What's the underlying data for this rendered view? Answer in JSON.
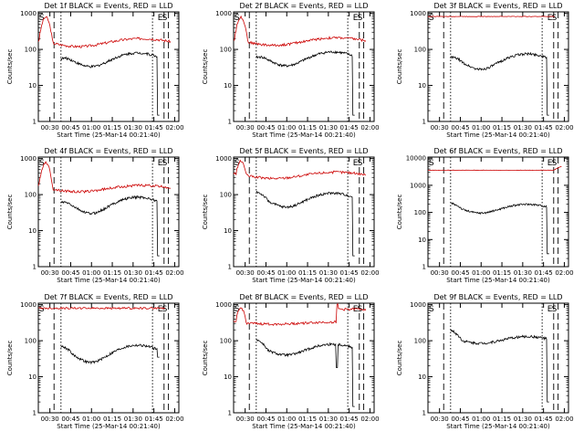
{
  "chart_data": [
    {
      "type": "line",
      "title": "Det 1f BLACK = Events, RED = LLD",
      "xlabel": "Start Time (25-Mar-14 00:21:40)",
      "ylabel": "Counts/sec",
      "ylog": true,
      "yticks": [
        "1",
        "10",
        "100",
        "1000"
      ],
      "xticks": [
        "00:30",
        "00:45",
        "01:00",
        "01:15",
        "01:30",
        "01:45",
        "02:00"
      ],
      "xlim": [
        "00:21:40",
        "02:03:00"
      ],
      "ylim": [
        1,
        1100
      ],
      "markers": [
        {
          "label": "S",
          "time": "00:21:40"
        },
        {
          "label": "E",
          "time": "01:52:20"
        },
        {
          "label": "S",
          "time": "01:55:30"
        }
      ],
      "lines": [
        {
          "time": "00:33:00",
          "style": "dashed"
        },
        {
          "time": "00:38:00",
          "style": "dotted"
        },
        {
          "time": "01:44:00",
          "style": "dotted"
        },
        {
          "time": "01:52:20",
          "style": "dashed"
        },
        {
          "time": "01:55:30",
          "style": "dashed"
        }
      ],
      "series": [
        {
          "color": "#cc0000",
          "shape": "hump",
          "start": "00:21:40",
          "end": "01:57:00",
          "peak_time": "00:27:00",
          "peak": 780,
          "base": 170,
          "mid_min": 120,
          "mid_max": 200
        },
        {
          "color": "#000000",
          "shape": "hump",
          "start": "00:38:00",
          "end": "01:49:00",
          "base": 55,
          "mid_min": 33,
          "mid_max": 80,
          "end_drop": 1.5
        }
      ]
    },
    {
      "type": "line",
      "title": "Det 2f BLACK = Events, RED = LLD",
      "xlabel": "Start Time (25-Mar-14 00:21:40)",
      "ylabel": "Counts/sec",
      "ylog": true,
      "yticks": [
        "1",
        "10",
        "100",
        "1000"
      ],
      "xticks": [
        "00:30",
        "00:45",
        "01:00",
        "01:15",
        "01:30",
        "01:45",
        "02:00"
      ],
      "xlim": [
        "00:21:40",
        "02:03:00"
      ],
      "ylim": [
        1,
        1100
      ],
      "markers": [
        {
          "label": "S",
          "time": "00:21:40"
        },
        {
          "label": "E",
          "time": "01:52:20"
        },
        {
          "label": "S",
          "time": "01:55:30"
        }
      ],
      "lines": [
        {
          "time": "00:33:00",
          "style": "dashed"
        },
        {
          "time": "00:38:00",
          "style": "dotted"
        },
        {
          "time": "01:44:00",
          "style": "dotted"
        },
        {
          "time": "01:52:20",
          "style": "dashed"
        },
        {
          "time": "01:55:30",
          "style": "dashed"
        }
      ],
      "series": [
        {
          "color": "#cc0000",
          "shape": "hump",
          "start": "00:21:40",
          "end": "01:57:00",
          "peak_time": "00:27:00",
          "peak": 780,
          "base": 180,
          "mid_min": 130,
          "mid_max": 210
        },
        {
          "color": "#000000",
          "shape": "hump",
          "start": "00:38:00",
          "end": "01:49:00",
          "base": 60,
          "mid_min": 35,
          "mid_max": 85,
          "end_drop": 1.5
        }
      ]
    },
    {
      "type": "line",
      "title": "Det 3f BLACK = Events, RED = LLD",
      "xlabel": "Start Time (25-Mar-14 00:21:40)",
      "ylabel": "Counts/sec",
      "ylog": true,
      "yticks": [
        "1",
        "10",
        "100",
        "1000"
      ],
      "xticks": [
        "00:30",
        "00:45",
        "01:00",
        "01:15",
        "01:30",
        "01:45",
        "02:00"
      ],
      "xlim": [
        "00:21:40",
        "02:03:00"
      ],
      "ylim": [
        1,
        1100
      ],
      "markers": [
        {
          "label": "S",
          "time": "00:21:40"
        },
        {
          "label": "E",
          "time": "01:52:20"
        },
        {
          "label": "S",
          "time": "01:55:30"
        }
      ],
      "lines": [
        {
          "time": "00:33:00",
          "style": "dashed"
        },
        {
          "time": "00:38:00",
          "style": "dotted"
        },
        {
          "time": "01:44:00",
          "style": "dotted"
        },
        {
          "time": "01:52:20",
          "style": "dashed"
        },
        {
          "time": "01:55:30",
          "style": "dashed"
        }
      ],
      "series": [
        {
          "color": "#cc0000",
          "shape": "flat",
          "start": "00:21:40",
          "end": "01:53:00",
          "level": 820
        },
        {
          "color": "#000000",
          "shape": "hump",
          "start": "00:38:00",
          "end": "01:49:00",
          "base": 60,
          "mid_min": 28,
          "mid_max": 75,
          "end_drop": 1.5
        }
      ]
    },
    {
      "type": "line",
      "title": "Det 4f BLACK = Events, RED = LLD",
      "xlabel": "Start Time (25-Mar-14 00:21:40)",
      "ylabel": "Counts/sec",
      "ylog": true,
      "yticks": [
        "1",
        "10",
        "100",
        "1000"
      ],
      "xticks": [
        "00:30",
        "00:45",
        "01:00",
        "01:15",
        "01:30",
        "01:45",
        "02:00"
      ],
      "xlim": [
        "00:21:40",
        "02:03:00"
      ],
      "ylim": [
        1,
        1100
      ],
      "markers": [
        {
          "label": "S",
          "time": "00:21:40"
        },
        {
          "label": "E",
          "time": "01:52:20"
        },
        {
          "label": "S",
          "time": "01:55:30"
        }
      ],
      "lines": [
        {
          "time": "00:33:00",
          "style": "dashed"
        },
        {
          "time": "00:38:00",
          "style": "dotted"
        },
        {
          "time": "01:44:00",
          "style": "dotted"
        },
        {
          "time": "01:52:20",
          "style": "dashed"
        },
        {
          "time": "01:55:30",
          "style": "dashed"
        }
      ],
      "series": [
        {
          "color": "#cc0000",
          "shape": "hump",
          "start": "00:21:40",
          "end": "01:57:00",
          "peak_time": "00:27:00",
          "peak": 780,
          "base": 190,
          "mid_min": 120,
          "mid_max": 180
        },
        {
          "color": "#000000",
          "shape": "hump",
          "start": "00:38:00",
          "end": "01:49:00",
          "base": 60,
          "mid_min": 30,
          "mid_max": 85,
          "end_drop": 2
        }
      ]
    },
    {
      "type": "line",
      "title": "Det 5f BLACK = Events, RED = LLD",
      "xlabel": "Start Time (25-Mar-14 00:21:40)",
      "ylabel": "Counts/sec",
      "ylog": true,
      "yticks": [
        "1",
        "10",
        "100",
        "1000"
      ],
      "xticks": [
        "00:30",
        "00:45",
        "01:00",
        "01:15",
        "01:30",
        "01:45",
        "02:00"
      ],
      "xlim": [
        "00:21:40",
        "02:03:00"
      ],
      "ylim": [
        1,
        1100
      ],
      "markers": [
        {
          "label": "S",
          "time": "00:21:40"
        },
        {
          "label": "E",
          "time": "01:52:20"
        },
        {
          "label": "S",
          "time": "01:55:30"
        }
      ],
      "lines": [
        {
          "time": "00:33:00",
          "style": "dashed"
        },
        {
          "time": "00:38:00",
          "style": "dotted"
        },
        {
          "time": "01:44:00",
          "style": "dotted"
        },
        {
          "time": "01:52:20",
          "style": "dashed"
        },
        {
          "time": "01:55:30",
          "style": "dashed"
        }
      ],
      "series": [
        {
          "color": "#cc0000",
          "shape": "hump",
          "start": "00:21:40",
          "end": "01:57:00",
          "peak_time": "00:27:00",
          "peak": 850,
          "base": 380,
          "mid_min": 280,
          "mid_max": 420
        },
        {
          "color": "#000000",
          "shape": "hump",
          "start": "00:38:00",
          "end": "01:49:00",
          "base": 120,
          "mid_min": 45,
          "mid_max": 110,
          "end_drop": 2
        }
      ]
    },
    {
      "type": "line",
      "title": "Det 6f BLACK = Events, RED = LLD",
      "xlabel": "Start Time (25-Mar-14 00:21:40)",
      "ylabel": "Counts/sec",
      "ylog": true,
      "yticks": [
        "1",
        "10",
        "100",
        "1000",
        "10000"
      ],
      "xticks": [
        "00:30",
        "00:45",
        "01:00",
        "01:15",
        "01:30",
        "01:45",
        "02:00"
      ],
      "xlim": [
        "00:21:40",
        "02:03:00"
      ],
      "ylim": [
        1,
        11000
      ],
      "markers": [
        {
          "label": "S",
          "time": "00:21:40"
        },
        {
          "label": "E",
          "time": "01:52:20"
        },
        {
          "label": "S",
          "time": "01:55:30"
        }
      ],
      "lines": [
        {
          "time": "00:33:00",
          "style": "dashed"
        },
        {
          "time": "00:38:00",
          "style": "dotted"
        },
        {
          "time": "01:44:00",
          "style": "dotted"
        },
        {
          "time": "01:52:20",
          "style": "dashed"
        },
        {
          "time": "01:55:30",
          "style": "dashed"
        }
      ],
      "series": [
        {
          "color": "#cc0000",
          "shape": "flat",
          "start": "00:21:40",
          "end": "01:58:00",
          "level": 3600,
          "end_rise": 5000
        },
        {
          "color": "#000000",
          "shape": "hump",
          "start": "00:38:00",
          "end": "01:49:00",
          "base": 220,
          "mid_min": 95,
          "mid_max": 200,
          "end_drop": 3
        }
      ]
    },
    {
      "type": "line",
      "title": "Det 7f BLACK = Events, RED = LLD",
      "xlabel": "Start Time (25-Mar-14 00:21:40)",
      "ylabel": "Counts/sec",
      "ylog": true,
      "yticks": [
        "1",
        "10",
        "100",
        "1000"
      ],
      "xticks": [
        "00:30",
        "00:45",
        "01:00",
        "01:15",
        "01:30",
        "01:45",
        "02:00"
      ],
      "xlim": [
        "00:21:40",
        "02:03:00"
      ],
      "ylim": [
        1,
        1100
      ],
      "markers": [
        {
          "label": "S",
          "time": "00:21:40"
        },
        {
          "label": "E",
          "time": "01:52:20"
        },
        {
          "label": "S",
          "time": "01:55:30"
        }
      ],
      "lines": [
        {
          "time": "00:33:00",
          "style": "dashed"
        },
        {
          "time": "00:38:00",
          "style": "dotted"
        },
        {
          "time": "01:44:00",
          "style": "dotted"
        },
        {
          "time": "01:52:20",
          "style": "dashed"
        },
        {
          "time": "01:55:30",
          "style": "dashed"
        }
      ],
      "series": [
        {
          "color": "#cc0000",
          "shape": "flat",
          "start": "00:21:40",
          "end": "01:53:00",
          "level": 800,
          "noise": 0.06
        },
        {
          "color": "#000000",
          "shape": "hump",
          "start": "00:38:00",
          "end": "01:49:00",
          "base": 70,
          "mid_min": 25,
          "mid_max": 75,
          "end_drop": 35
        }
      ]
    },
    {
      "type": "line",
      "title": "Det 8f BLACK = Events, RED = LLD",
      "xlabel": "Start Time (25-Mar-14 00:21:40)",
      "ylabel": "Counts/sec",
      "ylog": true,
      "yticks": [
        "1",
        "10",
        "100",
        "1000"
      ],
      "xticks": [
        "00:30",
        "00:45",
        "01:00",
        "01:15",
        "01:30",
        "01:45",
        "02:00"
      ],
      "xlim": [
        "00:21:40",
        "02:03:00"
      ],
      "ylim": [
        1,
        1100
      ],
      "markers": [
        {
          "label": "S",
          "time": "00:21:40"
        },
        {
          "label": "E",
          "time": "01:52:20"
        },
        {
          "label": "S",
          "time": "01:55:30"
        }
      ],
      "lines": [
        {
          "time": "00:33:00",
          "style": "dashed"
        },
        {
          "time": "00:38:00",
          "style": "dotted"
        },
        {
          "time": "01:44:00",
          "style": "dotted"
        },
        {
          "time": "01:52:20",
          "style": "dashed"
        },
        {
          "time": "01:55:30",
          "style": "dashed"
        }
      ],
      "series": [
        {
          "color": "#cc0000",
          "shape": "hump",
          "start": "00:21:40",
          "end": "01:57:00",
          "peak_time": "00:27:00",
          "peak": 800,
          "base": 330,
          "mid_min": 290,
          "mid_max": 330,
          "step_time": "01:36:00",
          "step_level": 1000
        },
        {
          "color": "#000000",
          "shape": "hump",
          "start": "00:38:00",
          "end": "01:49:00",
          "base": 110,
          "mid_min": 40,
          "mid_max": 80,
          "end_drop": 1.5,
          "gap_time": "01:36:00"
        }
      ]
    },
    {
      "type": "line",
      "title": "Det 9f BLACK = Events, RED = LLD",
      "xlabel": "Start Time (25-Mar-14 00:21:40)",
      "ylabel": "Counts/sec",
      "ylog": true,
      "yticks": [
        "1",
        "10",
        "100",
        "1000"
      ],
      "xticks": [
        "00:30",
        "00:45",
        "01:00",
        "01:15",
        "01:30",
        "01:45",
        "02:00"
      ],
      "xlim": [
        "00:21:40",
        "02:03:00"
      ],
      "ylim": [
        1,
        1100
      ],
      "markers": [
        {
          "label": "S",
          "time": "00:21:40"
        },
        {
          "label": "E",
          "time": "01:52:20"
        },
        {
          "label": "S",
          "time": "01:55:30"
        }
      ],
      "lines": [
        {
          "time": "00:33:00",
          "style": "dashed"
        },
        {
          "time": "00:38:00",
          "style": "dotted"
        },
        {
          "time": "01:44:00",
          "style": "dotted"
        },
        {
          "time": "01:52:20",
          "style": "dashed"
        },
        {
          "time": "01:55:30",
          "style": "dashed"
        }
      ],
      "series": [
        {
          "color": "#000000",
          "shape": "hump",
          "start": "00:38:00",
          "end": "01:49:00",
          "base": 200,
          "mid_min": 85,
          "mid_max": 130,
          "end_drop": 2
        }
      ]
    }
  ]
}
